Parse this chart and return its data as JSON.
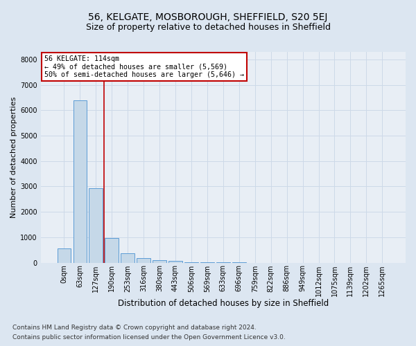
{
  "title1": "56, KELGATE, MOSBOROUGH, SHEFFIELD, S20 5EJ",
  "title2": "Size of property relative to detached houses in Sheffield",
  "xlabel": "Distribution of detached houses by size in Sheffield",
  "ylabel": "Number of detached properties",
  "bar_categories": [
    "0sqm",
    "63sqm",
    "127sqm",
    "190sqm",
    "253sqm",
    "316sqm",
    "380sqm",
    "443sqm",
    "506sqm",
    "569sqm",
    "633sqm",
    "696sqm",
    "759sqm",
    "822sqm",
    "886sqm",
    "949sqm",
    "1012sqm",
    "1075sqm",
    "1139sqm",
    "1202sqm",
    "1265sqm"
  ],
  "bar_values": [
    560,
    6380,
    2940,
    960,
    360,
    170,
    100,
    65,
    5,
    3,
    2,
    2,
    1,
    1,
    1,
    1,
    0,
    0,
    0,
    0,
    0
  ],
  "bar_color": "#c5d8e8",
  "bar_edge_color": "#5b9bd5",
  "red_line_x": 2.5,
  "annotation_text_lines": [
    "56 KELGATE: 114sqm",
    "← 49% of detached houses are smaller (5,569)",
    "50% of semi-detached houses are larger (5,646) →"
  ],
  "annotation_box_color": "#ffffff",
  "annotation_line_color": "#c00000",
  "ylim": [
    0,
    8300
  ],
  "yticks": [
    0,
    1000,
    2000,
    3000,
    4000,
    5000,
    6000,
    7000,
    8000
  ],
  "grid_color": "#cdd9e8",
  "background_color": "#dce6f1",
  "plot_bg_color": "#e8eef5",
  "footer_line1": "Contains HM Land Registry data © Crown copyright and database right 2024.",
  "footer_line2": "Contains public sector information licensed under the Open Government Licence v3.0.",
  "title1_fontsize": 10,
  "title2_fontsize": 9,
  "xlabel_fontsize": 8.5,
  "ylabel_fontsize": 8,
  "tick_fontsize": 7,
  "footer_fontsize": 6.5
}
